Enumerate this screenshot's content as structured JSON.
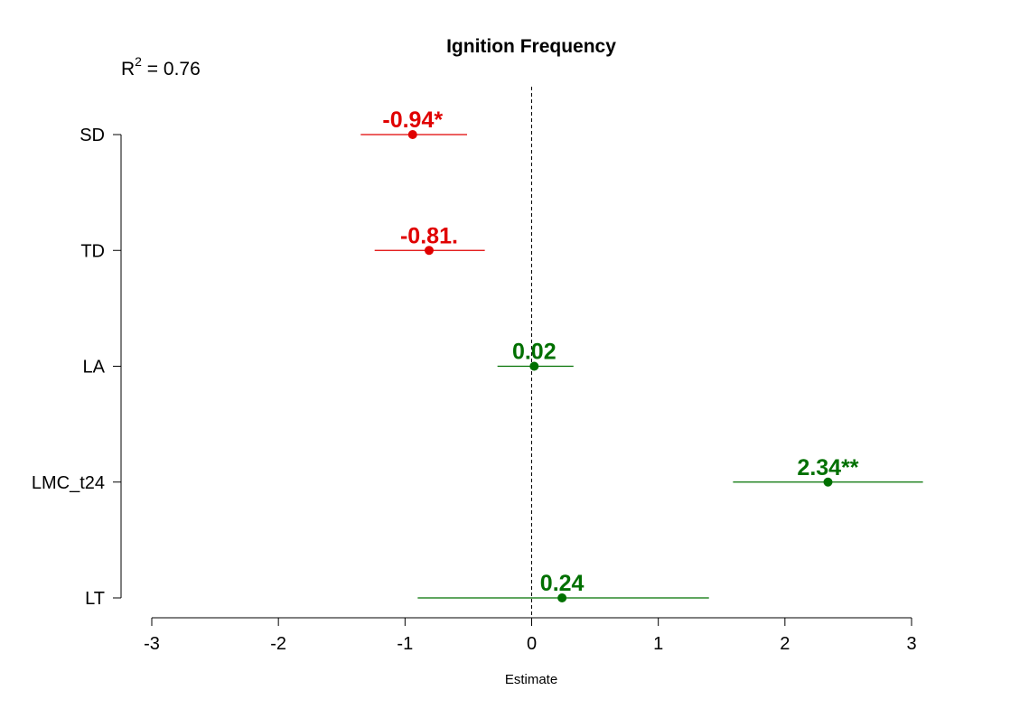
{
  "chart_data": {
    "type": "scatter",
    "title": "Ignition Frequency",
    "annotation": {
      "prefix": "R",
      "superscript": "2",
      "text": " = 0.76"
    },
    "xlabel": "Estimate",
    "ylabel": "",
    "xlim": [
      -3,
      3
    ],
    "x_ticks": [
      "-3",
      "-2",
      "-1",
      "0",
      "1",
      "2",
      "3"
    ],
    "reference_line": {
      "x": 0,
      "style": "dashed"
    },
    "grid": false,
    "colors": {
      "negative": "#e00000",
      "positive": "#007000",
      "axis": "#000000"
    },
    "terms": [
      {
        "name": "SD",
        "estimate": -0.94,
        "lower": -1.35,
        "upper": -0.51,
        "label": "-0.94*",
        "color": "#e00000"
      },
      {
        "name": "TD",
        "estimate": -0.81,
        "lower": -1.24,
        "upper": -0.37,
        "label": "-0.81.",
        "color": "#e00000"
      },
      {
        "name": "LA",
        "estimate": 0.02,
        "lower": -0.27,
        "upper": 0.33,
        "label": "0.02",
        "color": "#007000"
      },
      {
        "name": "LMC_t24",
        "estimate": 2.34,
        "lower": 1.59,
        "upper": 3.09,
        "label": "2.34**",
        "color": "#007000"
      },
      {
        "name": "LT",
        "estimate": 0.24,
        "lower": -0.9,
        "upper": 1.4,
        "label": "0.24",
        "color": "#007000"
      }
    ]
  }
}
